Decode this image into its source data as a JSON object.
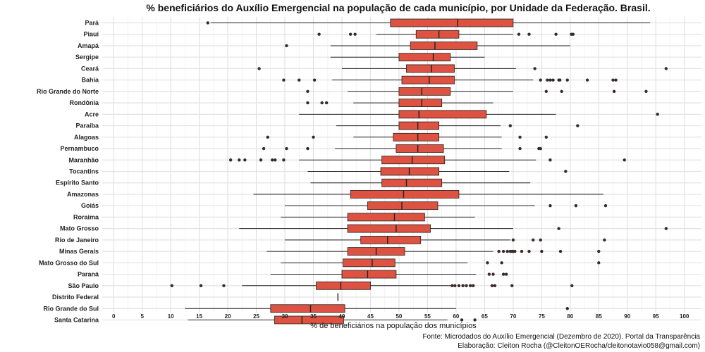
{
  "chart_data": {
    "type": "boxplot",
    "title": "% beneficiários do Auxílio Emergencial na população de cada município, por Unidade da Federação. Brasil.",
    "xlabel": "% de beneficiários na população dos municípios",
    "ylabel": "",
    "xlim": [
      -2,
      103
    ],
    "xticks": [
      0,
      5,
      10,
      15,
      20,
      25,
      30,
      35,
      40,
      45,
      50,
      55,
      60,
      65,
      70,
      75,
      80,
      85,
      90,
      95,
      100
    ],
    "grid": true,
    "legend": "none",
    "box_color": "#dd5240",
    "caption_lines": [
      "Fonte: Microdados do Auxílio Emergencial (Dezembro de 2020). Portal da Transparência",
      "Elaboração: Cleiton Rocha (@CleitonOERocha/cleitonotavio058@gmail.com)"
    ],
    "categories": [
      "Pará",
      "Piauí",
      "Amapá",
      "Sergipe",
      "Ceará",
      "Bahia",
      "Rio Grande do Norte",
      "Rondônia",
      "Acre",
      "Paraíba",
      "Alagoas",
      "Pernambuco",
      "Maranhão",
      "Tocantins",
      "Espírito Santo",
      "Amazonas",
      "Goiás",
      "Roraima",
      "Mato Grosso",
      "Rio de Janeiro",
      "Minas Gerais",
      "Mato Grosso do Sul",
      "Paraná",
      "São Paulo",
      "Distrito Federal",
      "Rio Grande do Sul",
      "Santa Catarina"
    ],
    "boxes": [
      {
        "min": 17,
        "q1": 48.5,
        "median": 60.3,
        "q3": 70,
        "max": 94,
        "outliers": [
          16.5
        ]
      },
      {
        "min": 46,
        "q1": 53,
        "median": 57,
        "q3": 60.5,
        "max": 70,
        "outliers": [
          36,
          41.5,
          42.3,
          71,
          72.8,
          77.5,
          80.2,
          80.5
        ]
      },
      {
        "min": 38,
        "q1": 52,
        "median": 56.3,
        "q3": 63.7,
        "max": 80,
        "outliers": [
          30.3
        ]
      },
      {
        "min": 38,
        "q1": 50,
        "median": 56,
        "q3": 59,
        "max": 65,
        "outliers": []
      },
      {
        "min": 40,
        "q1": 51.3,
        "median": 55.7,
        "q3": 59.7,
        "max": 70.5,
        "outliers": [
          25.5,
          73.8,
          96.8
        ]
      },
      {
        "min": 38.3,
        "q1": 50.5,
        "median": 55.3,
        "q3": 59.7,
        "max": 73.5,
        "outliers": [
          29.8,
          32.5,
          35.2,
          74.8,
          76,
          76.5,
          77,
          78,
          78.2,
          79.5,
          83,
          87.5,
          88
        ]
      },
      {
        "min": 41,
        "q1": 50,
        "median": 54,
        "q3": 59,
        "max": 70,
        "outliers": [
          34,
          75.8,
          78.5,
          87.7,
          93.3
        ]
      },
      {
        "min": 42,
        "q1": 50,
        "median": 54,
        "q3": 57.5,
        "max": 66.5,
        "outliers": [
          34,
          36.5,
          37.3
        ]
      },
      {
        "min": 32.5,
        "q1": 50,
        "median": 53.5,
        "q3": 65.3,
        "max": 77.5,
        "outliers": [
          95.3
        ]
      },
      {
        "min": 39,
        "q1": 50,
        "median": 53.3,
        "q3": 57,
        "max": 67.8,
        "outliers": [
          69.5,
          81.3
        ]
      },
      {
        "min": 42,
        "q1": 49,
        "median": 53.3,
        "q3": 57,
        "max": 68,
        "outliers": [
          27,
          35,
          71.2,
          75.8
        ]
      },
      {
        "min": 38.8,
        "q1": 49.5,
        "median": 53.3,
        "q3": 57.8,
        "max": 68,
        "outliers": [
          26.3,
          30.3,
          34,
          71.2,
          74.5,
          74.8
        ]
      },
      {
        "min": 32.5,
        "q1": 47,
        "median": 52.3,
        "q3": 58,
        "max": 74,
        "outliers": [
          20.5,
          22,
          23,
          25.8,
          27.8,
          28.3,
          29.8,
          76.5,
          89.5
        ]
      },
      {
        "min": 34,
        "q1": 46.8,
        "median": 51.8,
        "q3": 57,
        "max": 69.3,
        "outliers": [
          79.2
        ]
      },
      {
        "min": 34.5,
        "q1": 47,
        "median": 51.3,
        "q3": 57.5,
        "max": 73,
        "outliers": []
      },
      {
        "min": 24.5,
        "q1": 41.5,
        "median": 50.8,
        "q3": 60.5,
        "max": 85.8,
        "outliers": []
      },
      {
        "min": 30,
        "q1": 44.5,
        "median": 50.5,
        "q3": 56.8,
        "max": 73.8,
        "outliers": [
          76.5,
          81,
          86.2
        ]
      },
      {
        "min": 29.3,
        "q1": 41,
        "median": 49.2,
        "q3": 54.5,
        "max": 63.3,
        "outliers": []
      },
      {
        "min": 22,
        "q1": 41,
        "median": 49.5,
        "q3": 55.5,
        "max": 70,
        "outliers": [
          78,
          96.8
        ]
      },
      {
        "min": 30,
        "q1": 43.3,
        "median": 48,
        "q3": 53.8,
        "max": 69.5,
        "outliers": [
          70,
          73.5,
          74.8,
          86
        ]
      },
      {
        "min": 26.8,
        "q1": 41,
        "median": 46,
        "q3": 51,
        "max": 66.5,
        "outliers": [
          67.5,
          68.3,
          69,
          69.5,
          69.8,
          70,
          70.3,
          71.5,
          72.8,
          75,
          78.3,
          85
        ]
      },
      {
        "min": 29.3,
        "q1": 40.2,
        "median": 45.3,
        "q3": 49.3,
        "max": 62,
        "outliers": [
          65.5,
          68,
          85
        ]
      },
      {
        "min": 27.5,
        "q1": 40,
        "median": 44.5,
        "q3": 49.5,
        "max": 63.5,
        "outliers": [
          65.8,
          66.5,
          68.3,
          68.8
        ]
      },
      {
        "min": 22.5,
        "q1": 35.5,
        "median": 39.8,
        "q3": 45,
        "max": 59,
        "outliers": [
          10.2,
          15.3,
          19.3,
          59.3,
          59.8,
          60.5,
          61.2,
          61.8,
          62.5,
          63,
          66.3,
          66.8,
          69.8,
          80.3
        ]
      },
      {
        "min": 39.3,
        "q1": 39.3,
        "median": 39.3,
        "q3": 39.3,
        "max": 39.3,
        "outliers": []
      },
      {
        "min": 12.5,
        "q1": 27.5,
        "median": 34.5,
        "q3": 40.5,
        "max": 60,
        "outliers": [
          79.5
        ]
      },
      {
        "min": 13,
        "q1": 28.2,
        "median": 33,
        "q3": 40.3,
        "max": 58.5,
        "outliers": [
          61,
          63.3
        ]
      }
    ]
  }
}
